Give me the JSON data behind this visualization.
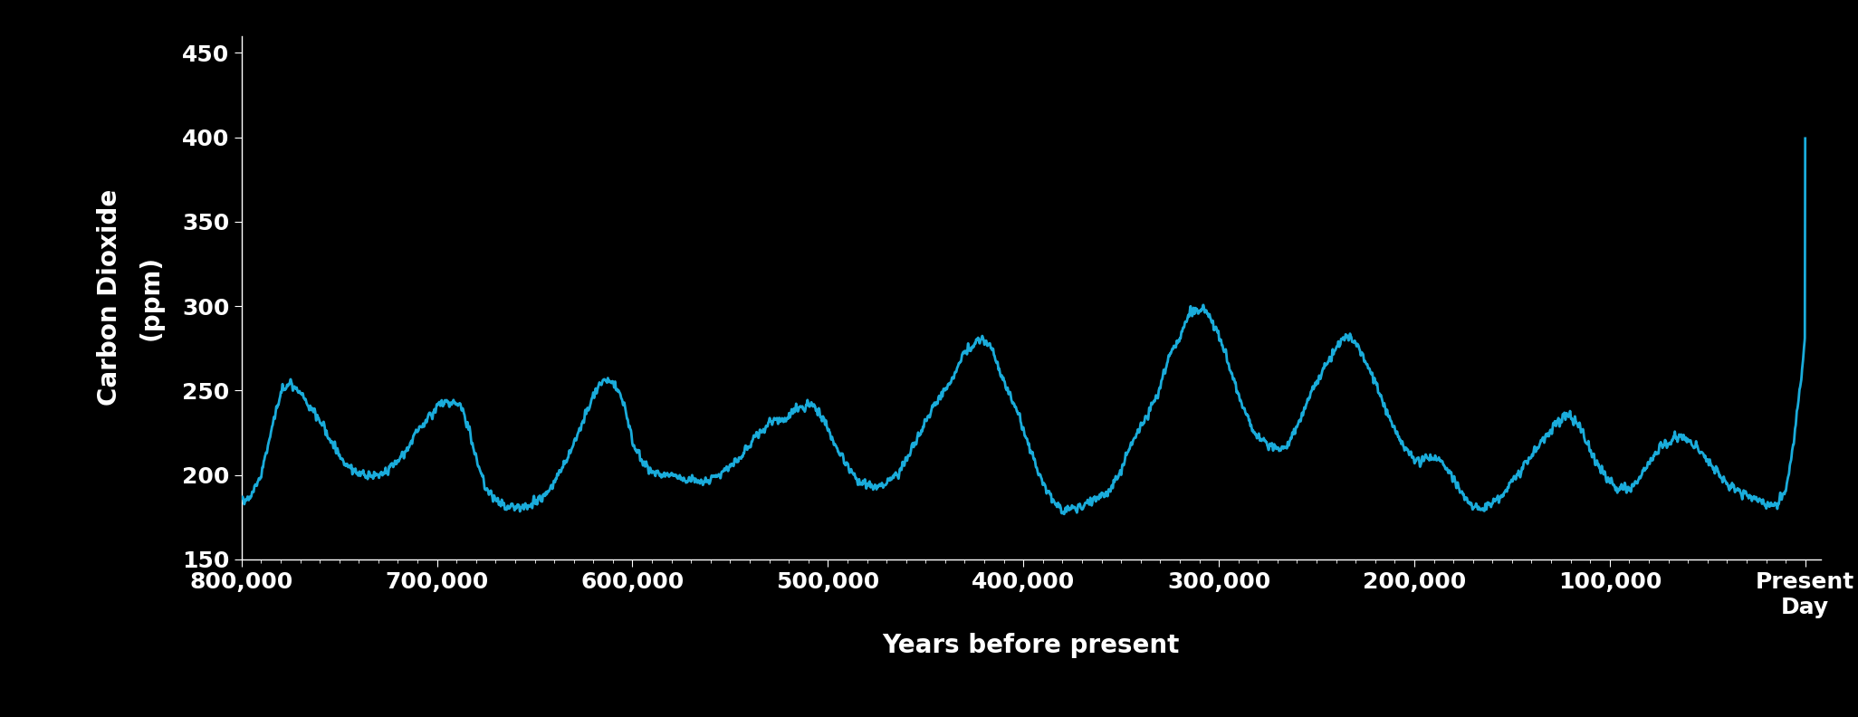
{
  "title": "",
  "xlabel": "Years before present",
  "ylabel_line1": "Carbon Dioxide",
  "ylabel_line2": "(ppm)",
  "background_color": "#000000",
  "line_color": "#1AACDB",
  "text_color": "#FFFFFF",
  "xlim": [
    800000,
    -8000
  ],
  "ylim": [
    150,
    460
  ],
  "yticks": [
    150,
    200,
    250,
    300,
    350,
    400,
    450
  ],
  "xtick_labels": [
    "800,000",
    "700,000",
    "600,000",
    "500,000",
    "400,000",
    "300,000",
    "200,000",
    "100,000",
    "Present\nDay"
  ],
  "xtick_values": [
    800000,
    700000,
    600000,
    500000,
    400000,
    300000,
    200000,
    100000,
    0
  ],
  "line_width": 2.0,
  "axis_fontsize": 20,
  "tick_fontsize": 18,
  "xlabel_fontsize": 20
}
